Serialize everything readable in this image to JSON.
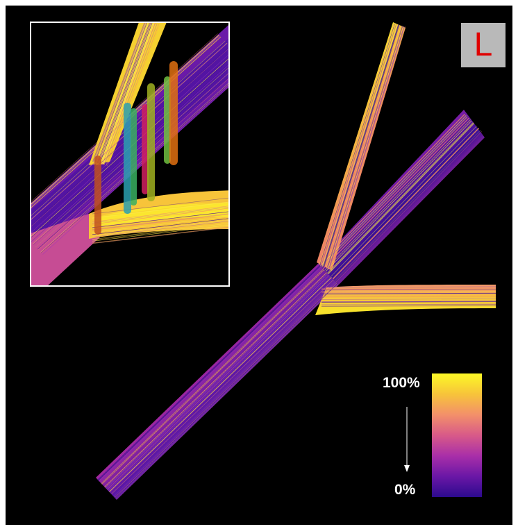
{
  "badge": {
    "letter": "L",
    "color": "#e00000"
  },
  "colorbar": {
    "top_label": "100%",
    "bottom_label": "0%",
    "colormap": "plasma",
    "stops": [
      "#fcf926",
      "#f7c43a",
      "#f3906a",
      "#d85a88",
      "#a92fa8",
      "#6a17a6",
      "#2c0a8e"
    ]
  },
  "scene": {
    "background": "#000000",
    "inset_border": "#ffffff"
  }
}
